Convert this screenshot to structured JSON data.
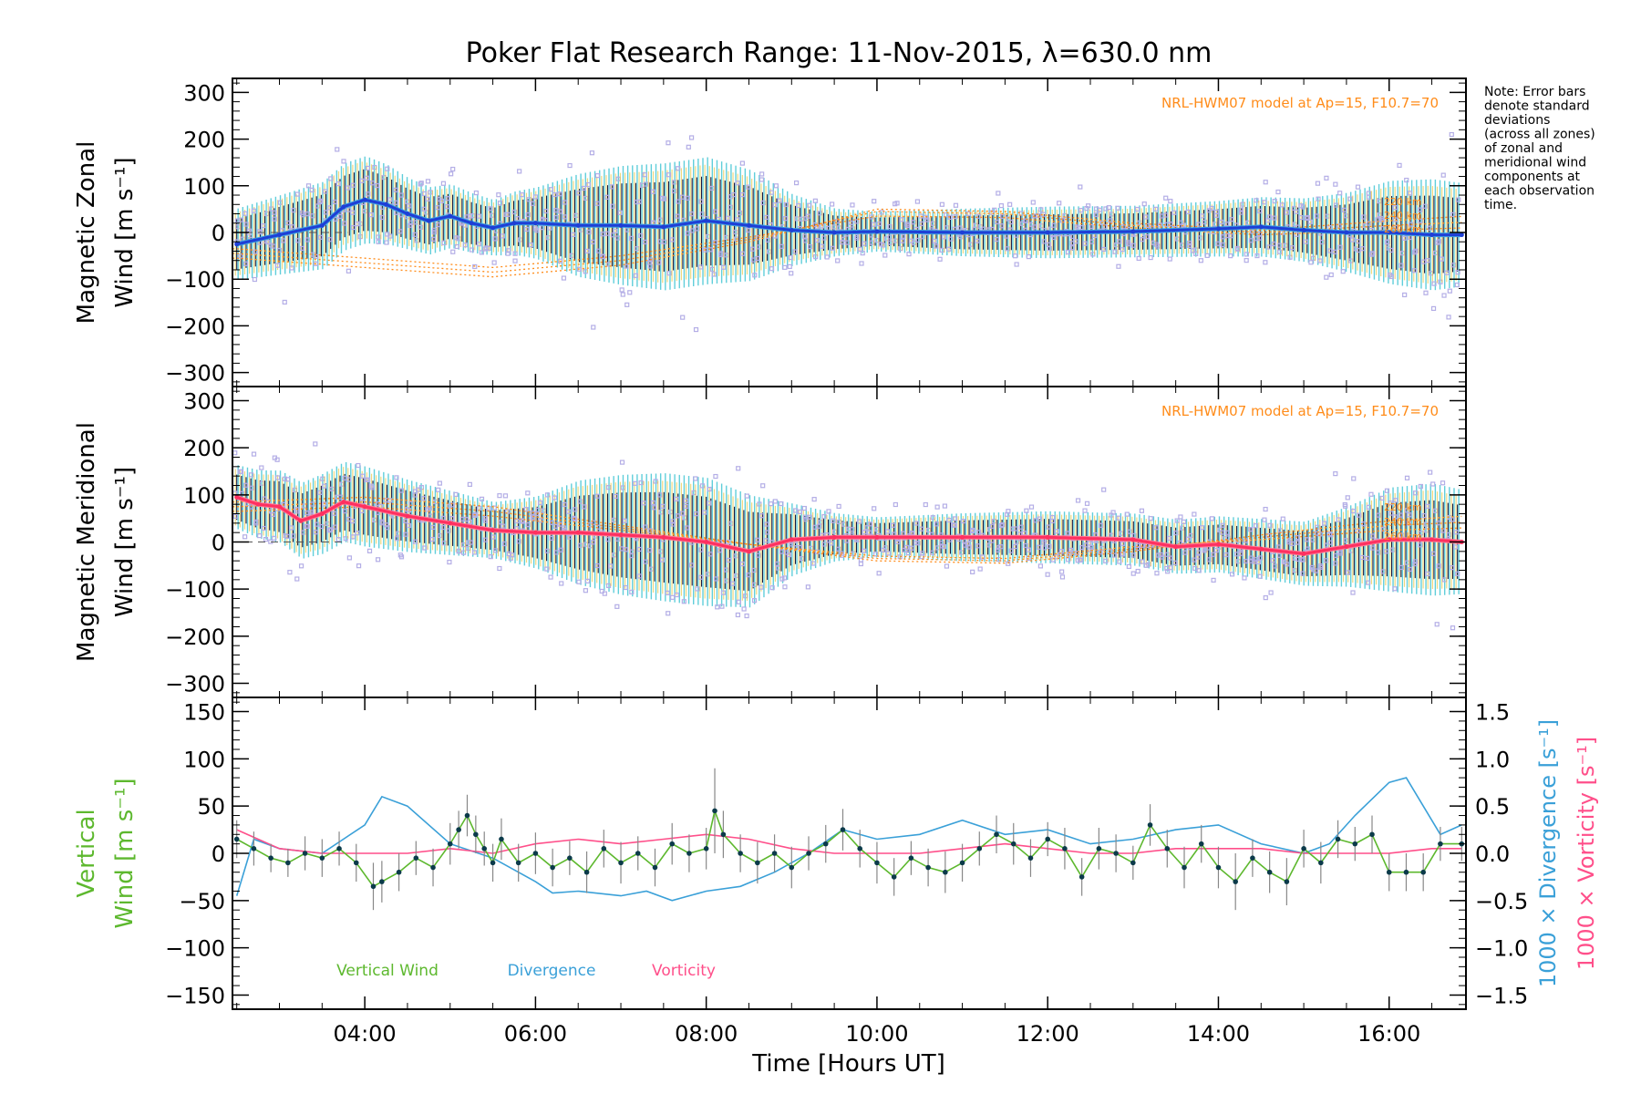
{
  "figure": {
    "title": "Poker Flat Research Range: 11-Nov-2015, λ=630.0 nm",
    "note_lines": [
      "Note: Error bars",
      "denote standard",
      "deviations",
      "(across all zones)",
      "of zonal and",
      "meridional wind",
      "components at",
      "each observation",
      "time."
    ],
    "colors": {
      "axis": "#000000",
      "scatter": "#b4aee6",
      "errorbar_dark": "#1a1a40",
      "errorbar_cyan": "#4fc9d6",
      "errorbar_yellow": "#e8c84a",
      "model": "#ff8c1a",
      "zonal_line": "#1f3fd6",
      "zonal_line_light": "#3fa0e0",
      "meridional_line": "#ff3060",
      "vertical_wind": "#5db82e",
      "vertical_points": "#0b3a4a",
      "divergence": "#3aa0d8",
      "vorticity": "#ff4f8a"
    }
  },
  "chart_data": [
    {
      "type": "scatter",
      "panel": "zonal",
      "ylabel_lines": [
        "Magnetic Zonal",
        "Wind [m s⁻¹]"
      ],
      "xlim": [
        2.45,
        16.9
      ],
      "ylim": [
        -330,
        330
      ],
      "yticks": [
        300,
        200,
        100,
        0,
        -100,
        -200,
        -300
      ],
      "yticklabels": [
        "300",
        "200",
        "100",
        "0",
        "−100",
        "−200",
        "−300"
      ],
      "model_label": "NRL-HWM07 model at Ap=15, F10.7=70",
      "model_altitudes": [
        "220 km",
        "240 km",
        "260 km"
      ],
      "mean_wind": {
        "x": [
          2.5,
          3.0,
          3.5,
          3.75,
          4.0,
          4.25,
          4.5,
          4.75,
          5.0,
          5.25,
          5.5,
          5.75,
          6.0,
          6.5,
          7.0,
          7.5,
          8.0,
          8.5,
          9.0,
          9.5,
          10.0,
          11.0,
          12.0,
          13.0,
          14.0,
          14.5,
          15.0,
          15.5,
          16.0,
          16.5,
          16.85
        ],
        "y": [
          -25,
          -5,
          15,
          55,
          70,
          60,
          40,
          25,
          35,
          20,
          10,
          20,
          20,
          15,
          15,
          12,
          25,
          15,
          5,
          0,
          2,
          0,
          0,
          2,
          8,
          12,
          5,
          0,
          0,
          -5,
          -5
        ]
      },
      "model_curves": [
        {
          "x": [
            2.5,
            4.0,
            5.5,
            7.0,
            8.5,
            10.0,
            11.5,
            13.0,
            14.5,
            16.0,
            16.9
          ],
          "y": [
            -55,
            -75,
            -95,
            -70,
            -20,
            50,
            45,
            20,
            5,
            25,
            35
          ]
        },
        {
          "x": [
            2.5,
            4.0,
            5.5,
            7.0,
            8.5,
            10.0,
            11.5,
            13.0,
            14.5,
            16.0,
            16.9
          ],
          "y": [
            -45,
            -65,
            -85,
            -60,
            -15,
            45,
            40,
            15,
            0,
            15,
            22
          ]
        },
        {
          "x": [
            2.5,
            4.0,
            5.5,
            7.0,
            8.5,
            10.0,
            11.5,
            13.0,
            14.5,
            16.0,
            16.9
          ],
          "y": [
            -35,
            -55,
            -75,
            -50,
            -10,
            35,
            32,
            10,
            -5,
            5,
            10
          ]
        }
      ],
      "spread_envelope": {
        "x": [
          2.5,
          3.0,
          3.5,
          4.0,
          4.5,
          5.0,
          5.5,
          6.0,
          6.5,
          7.0,
          7.5,
          8.0,
          8.5,
          9.0,
          9.5,
          10.0,
          11.0,
          12.0,
          13.0,
          14.0,
          15.0,
          15.5,
          16.0,
          16.5,
          16.85
        ],
        "sd": [
          90,
          100,
          110,
          110,
          90,
          80,
          70,
          90,
          130,
          150,
          160,
          160,
          140,
          90,
          60,
          50,
          60,
          65,
          65,
          70,
          80,
          100,
          130,
          140,
          130
        ]
      }
    },
    {
      "type": "scatter",
      "panel": "meridional",
      "ylabel_lines": [
        "Magnetic Meridional",
        "Wind [m s⁻¹]"
      ],
      "xlim": [
        2.45,
        16.9
      ],
      "ylim": [
        -330,
        330
      ],
      "yticks": [
        300,
        200,
        100,
        0,
        -100,
        -200,
        -300
      ],
      "yticklabels": [
        "300",
        "200",
        "100",
        "0",
        "−100",
        "−200",
        "−300"
      ],
      "model_label": "NRL-HWM07 model at Ap=15, F10.7=70",
      "model_altitudes": [
        "220 km",
        "240 km",
        "260 km"
      ],
      "mean_wind": {
        "x": [
          2.5,
          2.75,
          3.0,
          3.25,
          3.5,
          3.75,
          4.0,
          4.5,
          5.0,
          5.5,
          6.0,
          6.5,
          7.0,
          7.5,
          8.0,
          8.5,
          9.0,
          9.5,
          10.0,
          11.0,
          12.0,
          13.0,
          13.5,
          14.0,
          14.5,
          15.0,
          15.5,
          16.0,
          16.5,
          16.85
        ],
        "y": [
          95,
          80,
          75,
          45,
          60,
          85,
          75,
          55,
          40,
          25,
          20,
          20,
          15,
          10,
          0,
          -20,
          5,
          10,
          10,
          10,
          10,
          5,
          -10,
          -5,
          -15,
          -25,
          -10,
          5,
          5,
          0
        ]
      },
      "model_curves": [
        {
          "x": [
            2.5,
            4.0,
            5.5,
            7.0,
            8.5,
            10.0,
            11.5,
            13.0,
            14.5,
            16.0,
            16.9
          ],
          "y": [
            85,
            95,
            75,
            35,
            -5,
            -40,
            -45,
            -20,
            15,
            45,
            55
          ]
        },
        {
          "x": [
            2.5,
            4.0,
            5.5,
            7.0,
            8.5,
            10.0,
            11.5,
            13.0,
            14.5,
            16.0,
            16.9
          ],
          "y": [
            75,
            85,
            65,
            30,
            -5,
            -35,
            -40,
            -15,
            10,
            35,
            42
          ]
        },
        {
          "x": [
            2.5,
            4.0,
            5.5,
            7.0,
            8.5,
            10.0,
            11.5,
            13.0,
            14.5,
            16.0,
            16.9
          ],
          "y": [
            65,
            75,
            55,
            25,
            -5,
            -30,
            -35,
            -10,
            5,
            25,
            30
          ]
        }
      ],
      "spread_envelope": {
        "x": [
          2.5,
          3.0,
          3.5,
          4.0,
          4.5,
          5.0,
          5.5,
          6.0,
          6.5,
          7.0,
          7.5,
          8.0,
          8.5,
          9.0,
          9.5,
          10.0,
          11.0,
          12.0,
          13.0,
          14.0,
          15.0,
          15.5,
          16.0,
          16.5,
          16.85
        ],
        "sd": [
          80,
          90,
          100,
          100,
          90,
          80,
          70,
          90,
          130,
          150,
          160,
          160,
          140,
          90,
          60,
          50,
          60,
          65,
          65,
          70,
          80,
          100,
          130,
          140,
          130
        ]
      }
    },
    {
      "type": "line",
      "panel": "vertical",
      "ylabel_lines": [
        "Vertical",
        "Wind [m s⁻¹]"
      ],
      "y2label_divergence": "1000 × Divergence [s⁻¹]",
      "y2label_vorticity": "1000 × Vorticity [s⁻¹]",
      "xlabel": "Time [Hours UT]",
      "xlim": [
        2.45,
        16.9
      ],
      "xticks": [
        4,
        6,
        8,
        10,
        12,
        14,
        16
      ],
      "xticklabels": [
        "04:00",
        "06:00",
        "08:00",
        "10:00",
        "12:00",
        "14:00",
        "16:00"
      ],
      "ylim": [
        -165,
        165
      ],
      "yticks": [
        150,
        100,
        50,
        0,
        -50,
        -100,
        -150
      ],
      "yticklabels": [
        "150",
        "100",
        "50",
        "0",
        "−50",
        "−100",
        "−150"
      ],
      "y2lim": [
        -1.65,
        1.65
      ],
      "y2ticks": [
        1.5,
        1.0,
        0.5,
        0.0,
        -0.5,
        -1.0,
        -1.5
      ],
      "y2ticklabels": [
        "1.5",
        "1.0",
        "0.5",
        "0.0",
        "−0.5",
        "−1.0",
        "−1.5"
      ],
      "legend": [
        "Vertical Wind",
        "Divergence",
        "Vorticity"
      ],
      "vertical_wind": {
        "x": [
          2.5,
          2.7,
          2.9,
          3.1,
          3.3,
          3.5,
          3.7,
          3.9,
          4.1,
          4.2,
          4.4,
          4.6,
          4.8,
          5.0,
          5.1,
          5.2,
          5.3,
          5.4,
          5.5,
          5.6,
          5.8,
          6.0,
          6.2,
          6.4,
          6.6,
          6.8,
          7.0,
          7.2,
          7.4,
          7.6,
          7.8,
          8.0,
          8.1,
          8.2,
          8.4,
          8.6,
          8.8,
          9.0,
          9.2,
          9.4,
          9.6,
          9.8,
          10.0,
          10.2,
          10.4,
          10.6,
          10.8,
          11.0,
          11.2,
          11.4,
          11.6,
          11.8,
          12.0,
          12.2,
          12.4,
          12.6,
          12.8,
          13.0,
          13.2,
          13.4,
          13.6,
          13.8,
          14.0,
          14.2,
          14.4,
          14.6,
          14.8,
          15.0,
          15.2,
          15.4,
          15.6,
          15.8,
          16.0,
          16.2,
          16.4,
          16.6,
          16.85
        ],
        "y": [
          15,
          5,
          -5,
          -10,
          0,
          -5,
          5,
          -10,
          -35,
          -30,
          -20,
          -5,
          -15,
          10,
          25,
          40,
          20,
          5,
          -10,
          15,
          -10,
          0,
          -15,
          -5,
          -20,
          5,
          -10,
          0,
          -15,
          10,
          0,
          5,
          45,
          20,
          0,
          -10,
          0,
          -15,
          0,
          10,
          25,
          5,
          -10,
          -25,
          -5,
          -15,
          -20,
          -10,
          5,
          20,
          10,
          -5,
          15,
          5,
          -25,
          5,
          0,
          -10,
          30,
          5,
          -15,
          10,
          -15,
          -30,
          -5,
          -20,
          -30,
          5,
          -10,
          15,
          10,
          20,
          -20,
          -20,
          -20,
          10,
          10
        ],
        "err": [
          20,
          18,
          15,
          15,
          18,
          20,
          18,
          20,
          25,
          22,
          20,
          18,
          20,
          22,
          20,
          22,
          20,
          18,
          20,
          22,
          20,
          22,
          20,
          18,
          22,
          20,
          22,
          18,
          20,
          22,
          20,
          22,
          45,
          25,
          20,
          22,
          20,
          22,
          18,
          20,
          22,
          20,
          22,
          20,
          18,
          20,
          22,
          20,
          18,
          20,
          22,
          20,
          18,
          22,
          20,
          22,
          20,
          18,
          22,
          20,
          22,
          20,
          22,
          30,
          20,
          22,
          25,
          20,
          22,
          20,
          18,
          20,
          20,
          20,
          20,
          18,
          18
        ]
      },
      "divergence": {
        "x": [
          2.5,
          2.7,
          3.0,
          3.5,
          4.0,
          4.2,
          4.5,
          5.0,
          5.5,
          6.0,
          6.2,
          6.5,
          7.0,
          7.3,
          7.6,
          8.0,
          8.4,
          8.8,
          9.2,
          9.6,
          10.0,
          10.5,
          11.0,
          11.5,
          12.0,
          12.5,
          13.0,
          13.5,
          14.0,
          14.5,
          15.0,
          15.3,
          15.6,
          16.0,
          16.2,
          16.4,
          16.6,
          16.85
        ],
        "y": [
          -0.45,
          0.15,
          0.05,
          0.0,
          0.3,
          0.6,
          0.5,
          0.1,
          -0.05,
          -0.3,
          -0.42,
          -0.4,
          -0.45,
          -0.4,
          -0.5,
          -0.4,
          -0.35,
          -0.2,
          0.0,
          0.25,
          0.15,
          0.2,
          0.35,
          0.2,
          0.25,
          0.1,
          0.15,
          0.25,
          0.3,
          0.1,
          0.0,
          0.1,
          0.4,
          0.75,
          0.8,
          0.5,
          0.2,
          0.3
        ]
      },
      "vorticity": {
        "x": [
          2.5,
          2.75,
          3.0,
          3.5,
          4.0,
          4.5,
          5.0,
          5.5,
          6.0,
          6.5,
          7.0,
          7.5,
          8.0,
          8.5,
          9.0,
          9.5,
          10.0,
          10.5,
          11.0,
          11.5,
          12.0,
          12.5,
          13.0,
          13.5,
          14.0,
          14.5,
          15.0,
          15.5,
          16.0,
          16.5,
          16.85
        ],
        "y": [
          0.25,
          0.15,
          0.05,
          0.0,
          0.0,
          0.0,
          0.05,
          0.0,
          0.1,
          0.15,
          0.1,
          0.15,
          0.2,
          0.15,
          0.05,
          0.0,
          0.0,
          0.0,
          0.05,
          0.1,
          0.05,
          0.0,
          0.0,
          0.05,
          0.05,
          0.05,
          0.0,
          0.0,
          0.0,
          0.05,
          0.05
        ]
      }
    }
  ]
}
